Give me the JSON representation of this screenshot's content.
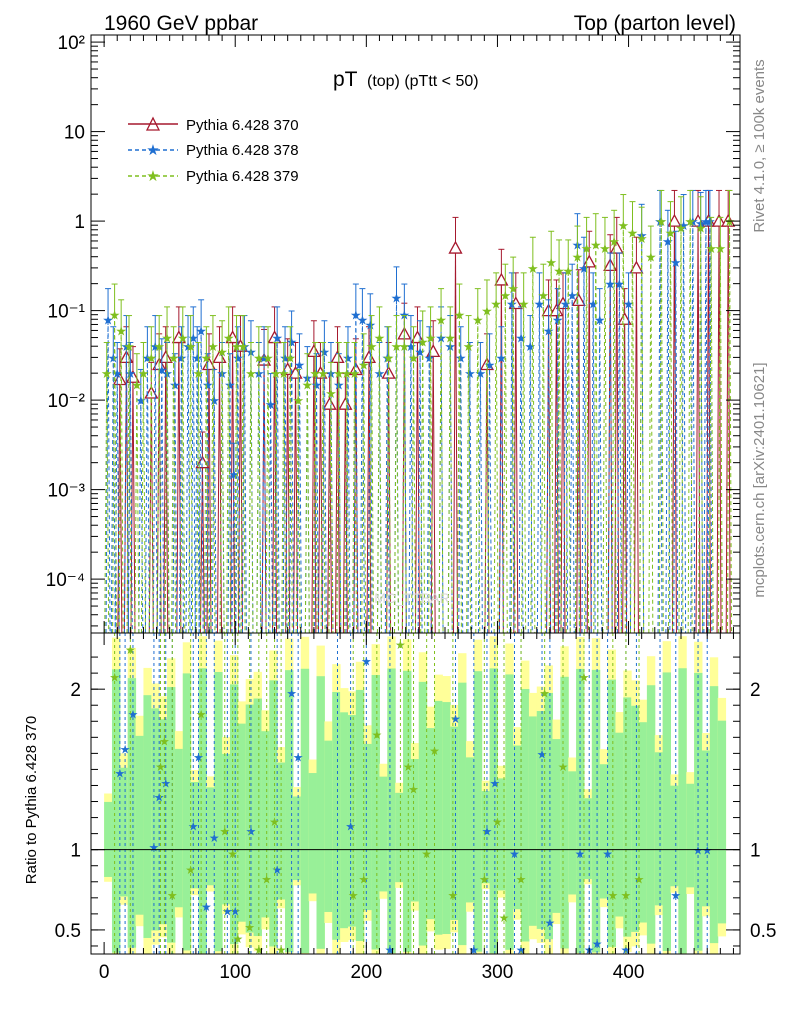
{
  "header": {
    "left": "1960 GeV ppbar",
    "right": "Top (parton level)"
  },
  "side_labels": {
    "rivet": "Rivet 4.1.0, ≥ 100k events",
    "mcplots": "mcplots.cern.ch [arXiv:2401.10621]"
  },
  "watermark": "MC_TTBAR",
  "colors": {
    "s370": "#a6192e",
    "s378": "#1f6fd1",
    "s379": "#7fbf1f",
    "band_green": "#98f098",
    "band_yellow": "#ffff99"
  },
  "chart_data": {
    "type": "line",
    "title_main": "pT",
    "title_sub": "(top)  (pTtt < 50)",
    "xlabel": "",
    "ylabel_ratio": "Ratio to Pythia 6.428 370",
    "xlim": [
      -10,
      485
    ],
    "ylim_main": [
      2.5e-05,
      120
    ],
    "ylog_main": true,
    "ylim_ratio": [
      0.35,
      2.35
    ],
    "x_ticks": [
      {
        "v": 0,
        "t": "0"
      },
      {
        "v": 100,
        "t": "100"
      },
      {
        "v": 200,
        "t": "200"
      },
      {
        "v": 300,
        "t": "300"
      },
      {
        "v": 400,
        "t": "400"
      }
    ],
    "y_ticks_main": [
      {
        "v": 100,
        "t": "10²"
      },
      {
        "v": 10,
        "t": "10"
      },
      {
        "v": 1,
        "t": "1"
      },
      {
        "v": 0.1,
        "t": "10⁻¹"
      },
      {
        "v": 0.01,
        "t": "10⁻²"
      },
      {
        "v": 0.001,
        "t": "10⁻³"
      },
      {
        "v": 0.0001,
        "t": "10⁻⁴"
      }
    ],
    "y_ticks_ratio": [
      {
        "v": 2,
        "t": "2"
      },
      {
        "v": 1,
        "t": "1"
      },
      {
        "v": 0.5,
        "t": "0.5"
      }
    ],
    "legend": [
      "Pythia 6.428 370",
      "Pythia 6.428 378",
      "Pythia 6.428 379"
    ],
    "series": [
      {
        "name": "Pythia 6.428 370",
        "marker": "triangle",
        "x": [
          12,
          17,
          22,
          36,
          42,
          47,
          57,
          75,
          80,
          88,
          98,
          104,
          122,
          130,
          140,
          146,
          160,
          165,
          172,
          178,
          184,
          192,
          202,
          217,
          229,
          239,
          251,
          268,
          292,
          303,
          314,
          339,
          345,
          350,
          362,
          370,
          386,
          391,
          397,
          406,
          435,
          453,
          461,
          469,
          476
        ],
        "values": [
          0.017,
          0.03,
          0.018,
          0.012,
          0.025,
          0.03,
          0.05,
          0.002,
          0.025,
          0.03,
          0.05,
          0.04,
          0.028,
          0.05,
          0.022,
          0.02,
          0.035,
          0.02,
          0.009,
          0.03,
          0.009,
          0.022,
          0.03,
          0.02,
          0.055,
          0.05,
          0.035,
          0.5,
          0.025,
          0.22,
          0.12,
          0.1,
          0.1,
          0.12,
          0.13,
          0.35,
          0.32,
          0.5,
          0.08,
          0.3,
          1.0,
          1.0,
          1.0,
          1.0,
          1.0
        ]
      },
      {
        "name": "Pythia 6.428 378",
        "marker": "star",
        "x": [
          3,
          7,
          10,
          17,
          20,
          28,
          33,
          39,
          44,
          48,
          54,
          59,
          64,
          68,
          71,
          74,
          79,
          84,
          90,
          96,
          99,
          102,
          107,
          112,
          118,
          122,
          127,
          132,
          138,
          143,
          149,
          155,
          162,
          168,
          173,
          179,
          186,
          192,
          197,
          203,
          210,
          216,
          223,
          229,
          234,
          241,
          248,
          257,
          264,
          272,
          279,
          287,
          294,
          303,
          311,
          318,
          325,
          332,
          339,
          346,
          352,
          357,
          361,
          366,
          373,
          378,
          386,
          393,
          400,
          410,
          424,
          430,
          436,
          442,
          449,
          455,
          459,
          462
        ],
        "values": [
          0.08,
          0.03,
          0.02,
          0.04,
          0.02,
          0.01,
          0.03,
          0.04,
          0.022,
          0.02,
          0.015,
          0.03,
          0.04,
          0.05,
          0.03,
          0.06,
          0.015,
          0.01,
          0.02,
          0.015,
          0.0015,
          0.03,
          0.04,
          0.035,
          0.02,
          0.03,
          0.009,
          0.05,
          0.03,
          0.045,
          0.025,
          0.018,
          0.015,
          0.035,
          0.02,
          0.015,
          0.03,
          0.09,
          0.08,
          0.07,
          0.02,
          0.03,
          0.14,
          0.09,
          0.04,
          0.035,
          0.03,
          0.05,
          0.04,
          0.03,
          0.02,
          0.02,
          0.025,
          0.03,
          0.12,
          0.05,
          0.04,
          0.12,
          0.06,
          0.08,
          0.12,
          0.15,
          0.55,
          0.3,
          0.12,
          0.08,
          0.2,
          0.2,
          0.12,
          0.7,
          1.0,
          0.6,
          0.35,
          0.9,
          1.0,
          0.95,
          1.0,
          1.0
        ]
      },
      {
        "name": "Pythia 6.428 379",
        "marker": "star",
        "x": [
          2,
          8,
          13,
          19,
          25,
          30,
          36,
          42,
          48,
          53,
          60,
          66,
          72,
          78,
          83,
          90,
          95,
          101,
          106,
          112,
          118,
          125,
          131,
          137,
          142,
          148,
          155,
          161,
          167,
          173,
          179,
          185,
          191,
          198,
          204,
          210,
          217,
          223,
          229,
          236,
          243,
          249,
          257,
          264,
          271,
          278,
          285,
          292,
          299,
          306,
          312,
          320,
          327,
          335,
          341,
          347,
          354,
          361,
          368,
          375,
          382,
          389,
          396,
          403,
          410,
          417,
          425,
          432,
          440,
          447,
          455,
          463,
          470,
          477
        ],
        "values": [
          0.02,
          0.09,
          0.06,
          0.04,
          0.015,
          0.02,
          0.03,
          0.04,
          0.05,
          0.03,
          0.05,
          0.04,
          0.02,
          0.03,
          0.04,
          0.035,
          0.05,
          0.04,
          0.04,
          0.02,
          0.03,
          0.03,
          0.02,
          0.02,
          0.03,
          0.01,
          0.015,
          0.02,
          0.02,
          0.012,
          0.02,
          0.02,
          0.02,
          0.025,
          0.04,
          0.05,
          0.03,
          0.04,
          0.04,
          0.03,
          0.045,
          0.05,
          0.08,
          0.05,
          0.09,
          0.04,
          0.08,
          0.1,
          0.12,
          0.15,
          0.18,
          0.12,
          0.3,
          0.15,
          0.35,
          0.28,
          0.28,
          0.4,
          0.5,
          0.55,
          0.5,
          0.6,
          0.9,
          0.75,
          0.65,
          0.4,
          1.0,
          0.75,
          0.85,
          1.0,
          0.85,
          0.5,
          0.5,
          1.0
        ]
      }
    ],
    "ratio_series": [
      {
        "name": "Pythia 6.428 378",
        "x": [
          12,
          16,
          22,
          38,
          42,
          47,
          52,
          68,
          72,
          78,
          84,
          94,
          100,
          112,
          132,
          143,
          148,
          178,
          188,
          200,
          218,
          268,
          282,
          292,
          298,
          313,
          318,
          334,
          340,
          363,
          370,
          376,
          384,
          398,
          406,
          424,
          436,
          453,
          460
        ],
        "values": [
          1.48,
          1.63,
          1.85,
          1.02,
          1.33,
          1.42,
          0.35,
          1.15,
          1.58,
          0.65,
          1.08,
          0.62,
          0.62,
          1.12,
          0.88,
          1.98,
          1.58,
          0.35,
          1.15,
          2.18,
          0.38,
          1.82,
          0.38,
          1.12,
          1.42,
          0.98,
          0.38,
          1.6,
          0.55,
          0.98,
          0.38,
          0.42,
          0.98,
          0.38,
          0.35,
          0.35,
          0.72,
          1.0,
          1.0
        ]
      },
      {
        "name": "Pythia 6.428 379",
        "x": [
          8,
          20,
          43,
          46,
          52,
          66,
          74,
          92,
          98,
          102,
          111,
          118,
          124,
          130,
          135,
          190,
          198,
          208,
          226,
          232,
          236,
          246,
          252,
          266,
          290,
          300,
          305,
          318,
          336,
          350,
          366,
          388,
          398,
          408
        ],
        "values": [
          2.08,
          2.25,
          1.52,
          1.68,
          0.72,
          0.88,
          1.85,
          1.12,
          0.98,
          0.45,
          0.52,
          0.38,
          0.82,
          1.18,
          0.38,
          0.72,
          0.82,
          1.72,
          2.28,
          1.52,
          1.38,
          0.98,
          1.62,
          0.72,
          0.82,
          1.18,
          0.58,
          0.82,
          1.98,
          1.52,
          2.08,
          0.72,
          0.72,
          0.82
        ]
      }
    ],
    "ratio_band_segments": [
      [
        0,
        470
      ]
    ]
  }
}
